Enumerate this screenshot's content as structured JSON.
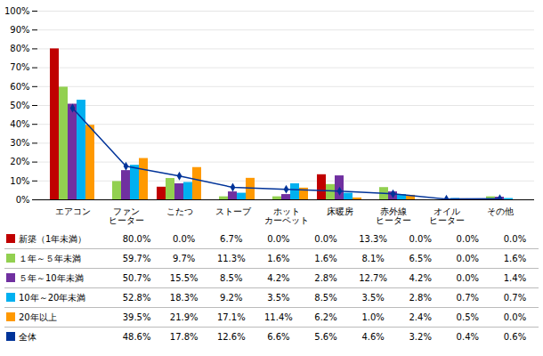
{
  "chart_data": {
    "type": "bar",
    "categories": [
      "エアコン",
      "ファン\nヒーター",
      "こたつ",
      "ストーブ",
      "ホット\nカーペット",
      "床暖房",
      "赤外線\nヒーター",
      "オイル\nヒーター",
      "その他"
    ],
    "series": [
      {
        "name": "新築（1年未満）",
        "color": "#C00000",
        "values": [
          80.0,
          0.0,
          6.7,
          0.0,
          0.0,
          13.3,
          0.0,
          0.0,
          0.0
        ],
        "value_labels": [
          "80.0%",
          "0.0%",
          "6.7%",
          "0.0%",
          "0.0%",
          "13.3%",
          "0.0%",
          "0.0%",
          "0.0%"
        ]
      },
      {
        "name": "１年～５年未満",
        "color": "#92D050",
        "values": [
          59.7,
          9.7,
          11.3,
          1.6,
          1.6,
          8.1,
          6.5,
          0.0,
          1.6
        ],
        "value_labels": [
          "59.7%",
          "9.7%",
          "11.3%",
          "1.6%",
          "1.6%",
          "8.1%",
          "6.5%",
          "0.0%",
          "1.6%"
        ]
      },
      {
        "name": "５年～10年未満",
        "color": "#7030A0",
        "values": [
          50.7,
          15.5,
          8.5,
          4.2,
          2.8,
          12.7,
          4.2,
          0.0,
          1.4
        ],
        "value_labels": [
          "50.7%",
          "15.5%",
          "8.5%",
          "4.2%",
          "2.8%",
          "12.7%",
          "4.2%",
          "0.0%",
          "1.4%"
        ]
      },
      {
        "name": "10年～20年未満",
        "color": "#00B0F0",
        "values": [
          52.8,
          18.3,
          9.2,
          3.5,
          8.5,
          3.5,
          2.8,
          0.7,
          0.7
        ],
        "value_labels": [
          "52.8%",
          "18.3%",
          "9.2%",
          "3.5%",
          "8.5%",
          "3.5%",
          "2.8%",
          "0.7%",
          "0.7%"
        ]
      },
      {
        "name": "20年以上",
        "color": "#FF9900",
        "values": [
          39.5,
          21.9,
          17.1,
          11.4,
          6.2,
          1.0,
          2.4,
          0.5,
          0.0
        ],
        "value_labels": [
          "39.5%",
          "21.9%",
          "17.1%",
          "11.4%",
          "6.2%",
          "1.0%",
          "2.4%",
          "0.5%",
          "0.0%"
        ]
      },
      {
        "name": "全体",
        "type": "line",
        "marker": "diamond",
        "color": "#003399",
        "values": [
          48.6,
          17.8,
          12.6,
          6.6,
          5.6,
          4.6,
          3.2,
          0.4,
          0.6
        ],
        "value_labels": [
          "48.6%",
          "17.8%",
          "12.6%",
          "6.6%",
          "5.6%",
          "4.6%",
          "3.2%",
          "0.4%",
          "0.6%"
        ]
      }
    ],
    "ylim": [
      0,
      100
    ],
    "yticks": [
      {
        "value": 0,
        "label": "0%"
      },
      {
        "value": 10,
        "label": "10%"
      },
      {
        "value": 20,
        "label": "20%"
      },
      {
        "value": 30,
        "label": "30%"
      },
      {
        "value": 40,
        "label": "40%"
      },
      {
        "value": 50,
        "label": "50%"
      },
      {
        "value": 60,
        "label": "60%"
      },
      {
        "value": 70,
        "label": "70%"
      },
      {
        "value": 80,
        "label": "80%"
      },
      {
        "value": 90,
        "label": "90%"
      },
      {
        "value": 100,
        "label": "100%"
      }
    ],
    "grid": true
  }
}
